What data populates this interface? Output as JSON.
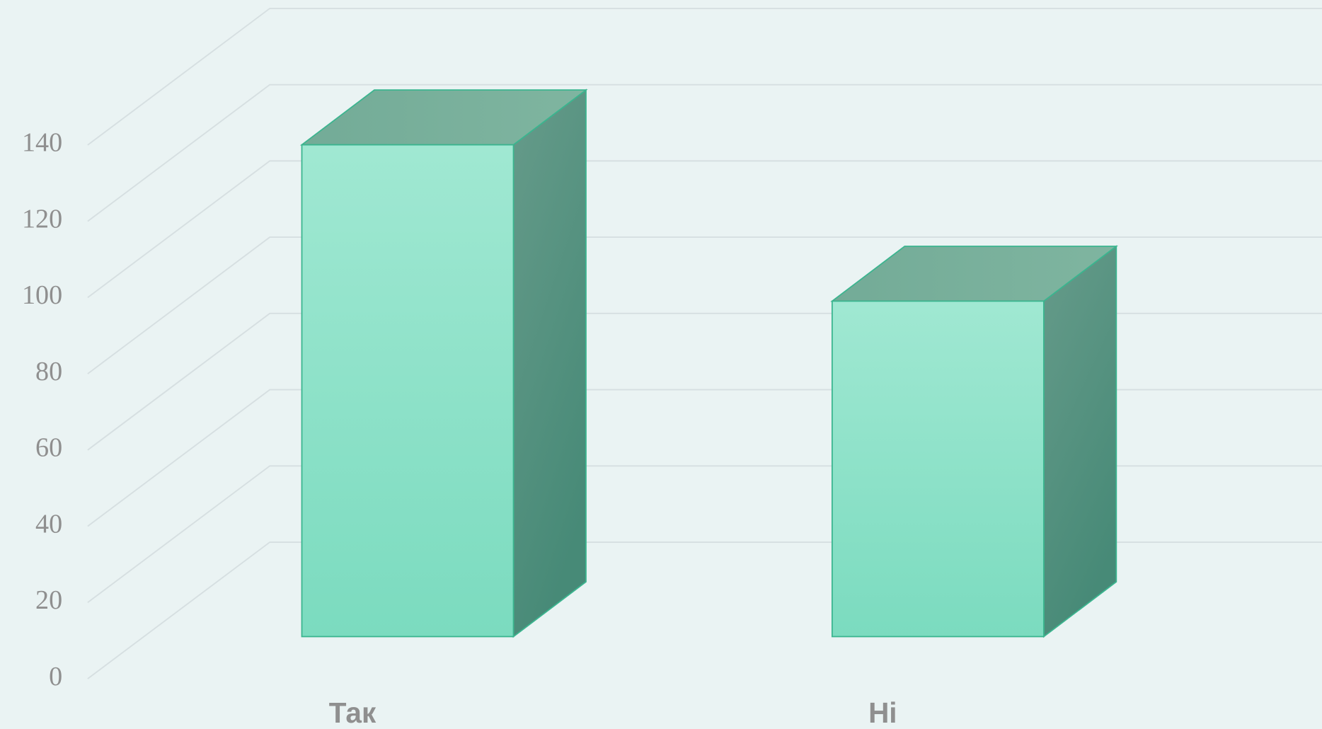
{
  "chart_data": {
    "type": "bar3d",
    "categories": [
      "Так",
      "Ні"
    ],
    "values": [
      129,
      88
    ],
    "color": "#8fdcc4",
    "ylim": [
      0,
      140
    ],
    "yticks": [
      0,
      20,
      40,
      60,
      80,
      100,
      120,
      140
    ],
    "grid": true
  }
}
